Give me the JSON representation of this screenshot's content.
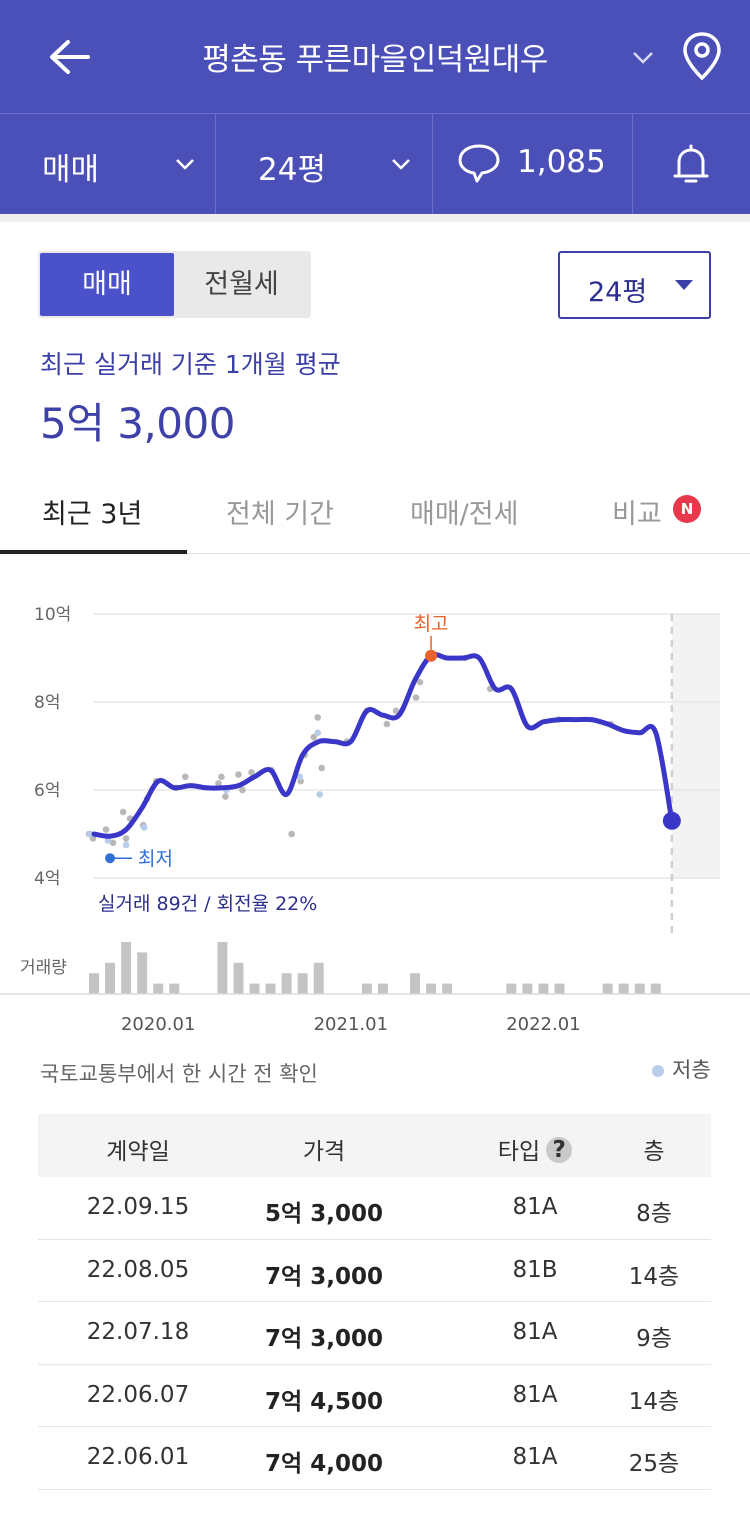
{
  "header": {
    "title": "평촌동 푸른마을인덕원대우",
    "icons": [
      "back-arrow-icon",
      "chevron-down-icon",
      "location-pin-icon"
    ]
  },
  "filters": {
    "trade_type": "매매",
    "area": "24평",
    "comment_count": "1,085",
    "icons": [
      "chevron-down-icon",
      "comment-bubble-icon",
      "bell-icon"
    ]
  },
  "panel": {
    "toggle_selected": "매매",
    "toggle_other": "전월세",
    "size_select": "24평",
    "avg_caption": "최근 실거래 기준 1개월 평균",
    "avg_price": "5억 3,000"
  },
  "tabs": {
    "items": [
      "최근 3년",
      "전체 기간",
      "매매/전세",
      "비교"
    ],
    "active": "최근 3년",
    "new_badge": "N"
  },
  "colors": {
    "brand": "#4b4fb8",
    "line": "#3a37c8",
    "high_point": "#e8622a",
    "low_point": "#2f6fd6",
    "low_floor_dot": "#b7cdea",
    "badge": "#e8384b"
  },
  "chart_data": {
    "type": "line",
    "y_tick_labels": [
      "10억",
      "8억",
      "6억",
      "4억"
    ],
    "y_ticks": [
      10,
      8,
      6,
      4
    ],
    "ylim": [
      4,
      10
    ],
    "y_unit": "억",
    "x_tick_labels": [
      "2020.01",
      "2021.01",
      "2022.01"
    ],
    "xlim": [
      "2019.09",
      "2022.12"
    ],
    "series": [
      {
        "values_by_month": [
          [
            "2019.09",
            5.0
          ],
          [
            "2019.10",
            4.95
          ],
          [
            "2019.11",
            5.1
          ],
          [
            "2019.12",
            5.6
          ],
          [
            "2020.01",
            6.2
          ],
          [
            "2020.02",
            6.05
          ],
          [
            "2020.03",
            6.1
          ],
          [
            "2020.04",
            6.05
          ],
          [
            "2020.05",
            6.05
          ],
          [
            "2020.06",
            6.1
          ],
          [
            "2020.07",
            6.3
          ],
          [
            "2020.08",
            6.45
          ],
          [
            "2020.09",
            5.9
          ],
          [
            "2020.10",
            6.8
          ],
          [
            "2020.11",
            7.1
          ],
          [
            "2020.12",
            7.1
          ],
          [
            "2021.01",
            7.1
          ],
          [
            "2021.02",
            7.8
          ],
          [
            "2021.03",
            7.7
          ],
          [
            "2021.04",
            7.7
          ],
          [
            "2021.05",
            8.5
          ],
          [
            "2021.06",
            9.05
          ],
          [
            "2021.07",
            9.0
          ],
          [
            "2021.08",
            9.0
          ],
          [
            "2021.09",
            9.0
          ],
          [
            "2021.10",
            8.3
          ],
          [
            "2021.11",
            8.3
          ],
          [
            "2021.12",
            7.45
          ],
          [
            "2022.01",
            7.55
          ],
          [
            "2022.02",
            7.6
          ],
          [
            "2022.03",
            7.6
          ],
          [
            "2022.04",
            7.6
          ],
          [
            "2022.05",
            7.5
          ],
          [
            "2022.06",
            7.35
          ],
          [
            "2022.07",
            7.3
          ],
          [
            "2022.08",
            7.3
          ],
          [
            "2022.09",
            5.3
          ]
        ]
      }
    ],
    "scatter_points": [
      [
        "2019.09",
        5.0
      ],
      [
        "2019.09",
        4.9
      ],
      [
        "2019.10",
        4.8
      ],
      [
        "2019.10",
        5.1
      ],
      [
        "2019.11",
        4.9
      ],
      [
        "2019.11",
        5.35
      ],
      [
        "2019.11",
        5.5
      ],
      [
        "2019.12",
        5.2
      ],
      [
        "2019.12",
        5.8
      ],
      [
        "2020.01",
        6.2
      ],
      [
        "2020.02",
        6.05
      ],
      [
        "2020.03",
        6.3
      ],
      [
        "2020.05",
        6.3
      ],
      [
        "2020.05",
        5.85
      ],
      [
        "2020.05",
        6.15
      ],
      [
        "2020.06",
        6.35
      ],
      [
        "2020.06",
        6.0
      ],
      [
        "2020.07",
        6.4
      ],
      [
        "2020.08",
        6.45
      ],
      [
        "2020.09",
        5.0
      ],
      [
        "2020.10",
        6.2
      ],
      [
        "2020.10",
        6.8
      ],
      [
        "2020.11",
        7.2
      ],
      [
        "2020.11",
        7.65
      ],
      [
        "2020.11",
        6.5
      ],
      [
        "2021.01",
        7.1
      ],
      [
        "2021.02",
        7.8
      ],
      [
        "2021.03",
        7.5
      ],
      [
        "2021.04",
        7.8
      ],
      [
        "2021.05",
        8.1
      ],
      [
        "2021.05",
        8.45
      ],
      [
        "2021.06",
        9.05
      ],
      [
        "2021.08",
        9.0
      ],
      [
        "2021.10",
        8.3
      ],
      [
        "2022.02",
        7.6
      ],
      [
        "2022.05",
        7.5
      ]
    ],
    "low_floor_points": [
      [
        "2019.09",
        5.0
      ],
      [
        "2019.10",
        4.85
      ],
      [
        "2019.11",
        4.75
      ],
      [
        "2019.12",
        5.15
      ],
      [
        "2020.05",
        6.0
      ],
      [
        "2020.10",
        6.3
      ],
      [
        "2020.11",
        7.3
      ],
      [
        "2020.11",
        5.9
      ]
    ],
    "highest": {
      "label": "최고",
      "date": "2021.06",
      "value": 9.05
    },
    "lowest": {
      "label": "최저",
      "date": "2019.10",
      "value": 4.45
    },
    "stats_text": "실거래 89건 / 회전율 22%",
    "volume_label": "거래량",
    "volume_by_month": [
      [
        "2019.09",
        2
      ],
      [
        "2019.10",
        3
      ],
      [
        "2019.11",
        5
      ],
      [
        "2019.12",
        4
      ],
      [
        "2020.01",
        1
      ],
      [
        "2020.02",
        1
      ],
      [
        "2020.05",
        5
      ],
      [
        "2020.06",
        3
      ],
      [
        "2020.07",
        1
      ],
      [
        "2020.08",
        1
      ],
      [
        "2020.09",
        2
      ],
      [
        "2020.10",
        2
      ],
      [
        "2020.11",
        3
      ],
      [
        "2021.02",
        1
      ],
      [
        "2021.03",
        1
      ],
      [
        "2021.05",
        2
      ],
      [
        "2021.06",
        1
      ],
      [
        "2021.07",
        1
      ],
      [
        "2021.11",
        1
      ],
      [
        "2021.12",
        1
      ],
      [
        "2022.01",
        1
      ],
      [
        "2022.02",
        1
      ],
      [
        "2022.05",
        1
      ],
      [
        "2022.06",
        1
      ],
      [
        "2022.07",
        1
      ],
      [
        "2022.08",
        1
      ]
    ],
    "grid": true,
    "future_area_shaded": true
  },
  "source_note": "국토교통부에서 한 시간 전 확인",
  "legend": {
    "low_floor": "저층"
  },
  "table": {
    "headers": [
      "계약일",
      "가격",
      "타입",
      "층"
    ],
    "help_icon": "?",
    "rows": [
      [
        "22.09.15",
        "5억 3,000",
        "81A",
        "8층"
      ],
      [
        "22.08.05",
        "7억 3,000",
        "81B",
        "14층"
      ],
      [
        "22.07.18",
        "7억 3,000",
        "81A",
        "9층"
      ],
      [
        "22.06.07",
        "7억 4,500",
        "81A",
        "14층"
      ],
      [
        "22.06.01",
        "7억 4,000",
        "81A",
        "25층"
      ]
    ]
  }
}
